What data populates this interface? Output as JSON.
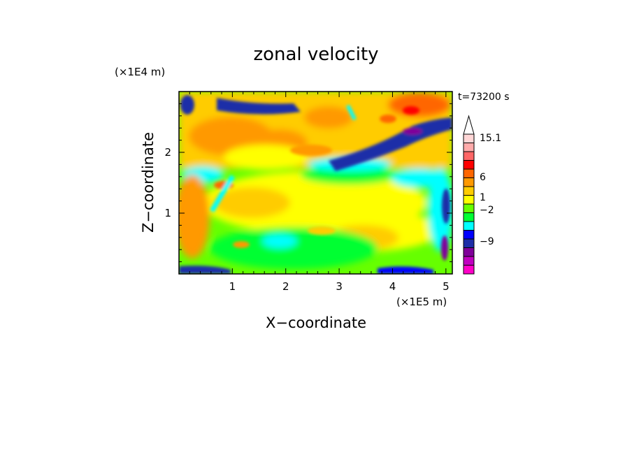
{
  "chart_data": {
    "type": "heatmap",
    "title": "zonal velocity",
    "xlabel": "X−coordinate",
    "ylabel": "Z−coordinate",
    "x_unit": "(×1E5 m)",
    "y_unit": "(×1E4 m)",
    "time_label": "t=73200 s",
    "xlim": [
      0,
      5.12
    ],
    "ylim": [
      0,
      3.0
    ],
    "x_ticks": [
      "1",
      "2",
      "3",
      "4",
      "5"
    ],
    "y_ticks": [
      "1",
      "2"
    ],
    "colorbar": {
      "labels": [
        "15.1",
        "6",
        "1",
        "−2",
        "−9"
      ],
      "colors": [
        "#ff00c8",
        "#c000c0",
        "#80009a",
        "#1e2ea8",
        "#0000ff",
        "#00ffff",
        "#00ff33",
        "#66ff00",
        "#ffff00",
        "#ffcc00",
        "#ff9900",
        "#ff6600",
        "#ff0000",
        "#ff6666",
        "#ffaaaa",
        "#ffd6d6"
      ]
    }
  }
}
